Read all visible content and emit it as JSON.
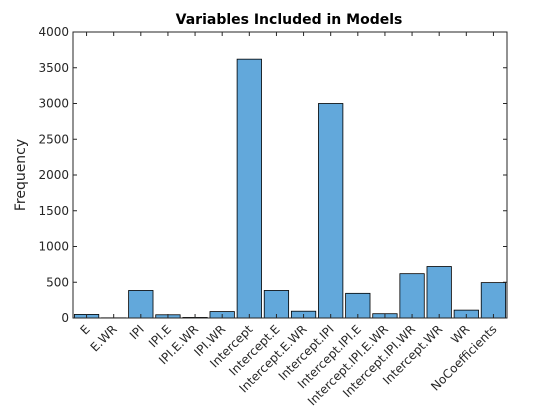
{
  "chart_data": {
    "type": "bar",
    "title": "Variables Included in Models",
    "xlabel": "",
    "ylabel": "Frequency",
    "ylim": [
      0,
      4000
    ],
    "yticks": [
      0,
      500,
      1000,
      1500,
      2000,
      2500,
      3000,
      3500,
      4000
    ],
    "grid": false,
    "categories": [
      "E",
      "E.WR",
      "IPI",
      "IPI.E",
      "IPI.E.WR",
      "IPI.WR",
      "Intercept",
      "Intercept.E",
      "Intercept.E.WR",
      "Intercept.IPI",
      "Intercept.IPI.E",
      "Intercept.IPI.E.WR",
      "Intercept.IPI.WR",
      "Intercept.WR",
      "WR",
      "NoCoefficients"
    ],
    "values": [
      50,
      3,
      385,
      45,
      8,
      90,
      3620,
      385,
      95,
      3000,
      345,
      60,
      620,
      720,
      110,
      495
    ],
    "colors": {
      "bar": "#62a8db",
      "edge": "#000000",
      "axis": "#262626"
    }
  }
}
